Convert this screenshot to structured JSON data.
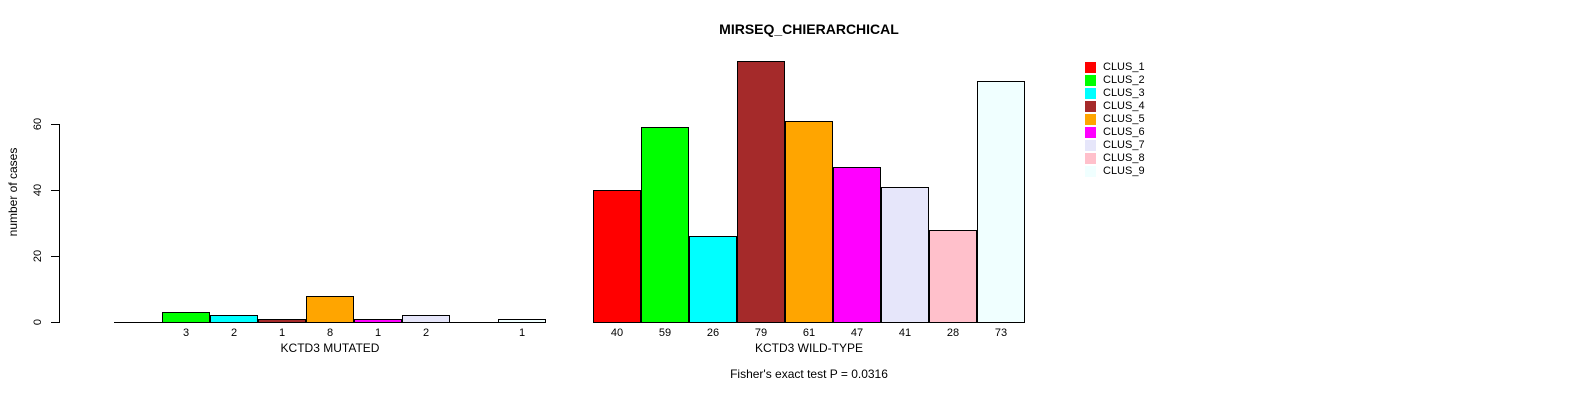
{
  "chart_data": {
    "type": "bar",
    "title": "MIRSEQ_CHIERARCHICAL",
    "ylabel": "number of cases",
    "yticks": [
      0,
      20,
      40,
      60
    ],
    "ylim": [
      0,
      80
    ],
    "grid": false,
    "legend_position": "right",
    "bar_outline_color": "#000000",
    "clusters": [
      {
        "name": "CLUS_1",
        "color": "#FF0000"
      },
      {
        "name": "CLUS_2",
        "color": "#00FF00"
      },
      {
        "name": "CLUS_3",
        "color": "#00FFFF"
      },
      {
        "name": "CLUS_4",
        "color": "#A52A2A"
      },
      {
        "name": "CLUS_5",
        "color": "#FFA500"
      },
      {
        "name": "CLUS_6",
        "color": "#FF00FF"
      },
      {
        "name": "CLUS_7",
        "color": "#E6E6FA"
      },
      {
        "name": "CLUS_8",
        "color": "#FFC0CB"
      },
      {
        "name": "CLUS_9",
        "color": "#F0FFFF"
      }
    ],
    "groups": [
      {
        "label": "KCTD3 MUTATED",
        "values": [
          0,
          3,
          2,
          1,
          8,
          1,
          2,
          0,
          1
        ]
      },
      {
        "label": "KCTD3 WILD-TYPE",
        "values": [
          40,
          59,
          26,
          79,
          61,
          47,
          41,
          28,
          73
        ]
      }
    ],
    "annotation": "Fisher's exact test P = 0.0316"
  }
}
